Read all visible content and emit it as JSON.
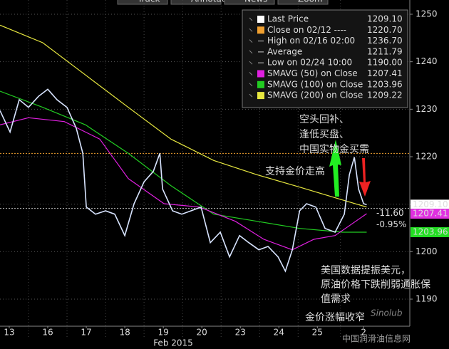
{
  "chart_data": {
    "type": "line",
    "toolbar": [
      "Track",
      "Annotate",
      "News",
      "Zoom"
    ],
    "xlim": [
      0.26,
      10.9
    ],
    "xticks": [
      {
        "value": 0.5,
        "label": "13"
      },
      {
        "value": 1.5,
        "label": "16"
      },
      {
        "value": 2.5,
        "label": "17"
      },
      {
        "value": 3.5,
        "label": "18"
      },
      {
        "value": 4.5,
        "label": "19"
      },
      {
        "value": 5.5,
        "label": "20"
      },
      {
        "value": 6.5,
        "label": "23"
      },
      {
        "value": 7.5,
        "label": "24"
      },
      {
        "value": 8.5,
        "label": "25"
      },
      {
        "value": 9.7,
        "label": "2"
      }
    ],
    "x_axis_label": "Feb 2015",
    "ylim": [
      1184.3,
      1253
    ],
    "yticks": [
      1190,
      1200,
      1210,
      1220,
      1230,
      1240,
      1250
    ],
    "grid": true,
    "series": [
      {
        "name": "Last Price",
        "color": "#d8e4ff",
        "end_label": "1209.10",
        "label_bg": "#ffffff",
        "label_fg": "#000000",
        "x": [
          0.26,
          0.52,
          0.76,
          1.0,
          1.26,
          1.5,
          1.74,
          2.0,
          2.24,
          2.41,
          2.5,
          2.74,
          3.0,
          3.24,
          3.5,
          3.74,
          4.0,
          4.24,
          4.41,
          4.48,
          4.74,
          4.98,
          5.22,
          5.48,
          5.72,
          5.98,
          6.22,
          6.48,
          6.72,
          6.98,
          7.22,
          7.48,
          7.67,
          7.85,
          8.04,
          8.22,
          8.46,
          8.7,
          8.96,
          9.2,
          9.33,
          9.46,
          9.57,
          9.7,
          9.78
        ],
        "values": [
          1229.7,
          1225.2,
          1232,
          1230.4,
          1232.7,
          1234.2,
          1232,
          1230.4,
          1226,
          1220.7,
          1209.4,
          1207.9,
          1208.6,
          1207.9,
          1203.4,
          1210.1,
          1214.7,
          1216.9,
          1220.7,
          1213.2,
          1208.6,
          1207.9,
          1208.6,
          1209.4,
          1201.9,
          1204.1,
          1198.9,
          1203.4,
          1201.9,
          1200.4,
          1201.1,
          1198.9,
          1195.9,
          1200.4,
          1208.6,
          1210.1,
          1209.4,
          1204.9,
          1204.1,
          1207.9,
          1216.2,
          1219.9,
          1213.2,
          1210.1,
          1209.9
        ]
      },
      {
        "name": "SMAVG (50) on Close",
        "color": "#e020e0",
        "end_label": "1207.41",
        "label_bg": "#e030e0",
        "label_fg": "#000000",
        "x": [
          0.26,
          1.0,
          1.93,
          2.85,
          3.59,
          4.52,
          5.44,
          6.37,
          7.11,
          7.85,
          8.41,
          8.96,
          9.78
        ],
        "values": [
          1226.7,
          1228.2,
          1227.4,
          1223.7,
          1215.4,
          1210.1,
          1209.4,
          1206.4,
          1202.6,
          1200.4,
          1202.6,
          1203.4,
          1208
        ]
      },
      {
        "name": "SMAVG (100) on Close",
        "color": "#22cc22",
        "end_label": "1203.96",
        "label_bg": "#22dd22",
        "label_fg": "#000000",
        "x": [
          0.26,
          1.37,
          2.48,
          3.59,
          4.7,
          5.81,
          6.93,
          8.04,
          9.15,
          9.78
        ],
        "values": [
          1233.8,
          1230.4,
          1226.7,
          1220.7,
          1213.9,
          1207.9,
          1206.4,
          1204.9,
          1204.1,
          1204.1
        ]
      },
      {
        "name": "SMAVG (200) on Close",
        "color": "#e8e840",
        "x": [
          0.26,
          1.37,
          2.48,
          3.59,
          4.7,
          5.81,
          6.93,
          8.04,
          9.15,
          9.78
        ],
        "values": [
          1247.7,
          1244,
          1237.2,
          1230.4,
          1223.7,
          1219.2,
          1216.2,
          1213.6,
          1210.9,
          1209.4
        ]
      }
    ],
    "reference_lines": [
      {
        "value": 1220.7,
        "color": "#f0a030"
      },
      {
        "value": 1209.1,
        "color": "#bbbbbb"
      }
    ],
    "change_labels": [
      "-11.60",
      "-0.95%"
    ],
    "legend": [
      {
        "label": "Last Price",
        "value": "1209.10"
      },
      {
        "label": "Close on 02/12 ----",
        "value": "1220.70"
      },
      {
        "label": "High on 02/16 02:00",
        "value": "1236.70"
      },
      {
        "label": "Average",
        "value": "1211.79"
      },
      {
        "label": "Low on 02/24 10:00",
        "value": "1190.00"
      },
      {
        "label": "SMAVG (50) on Close",
        "value": "1207.41"
      },
      {
        "label": "SMAVG (100) on Close",
        "value": "1203.96"
      },
      {
        "label": "SMAVG (200) on Close",
        "value": "1209.22"
      }
    ],
    "annotations_green": [
      "空头回补、",
      "逢低买盘、",
      "中国实物金买需",
      "支持金价走高"
    ],
    "annotations_red": [
      "美国数据提振美元，",
      "原油价格下跌削弱通胀保",
      "值需求",
      "金价涨幅收窄"
    ],
    "watermark": [
      "Sinolub",
      "中国润滑油信息网"
    ]
  }
}
